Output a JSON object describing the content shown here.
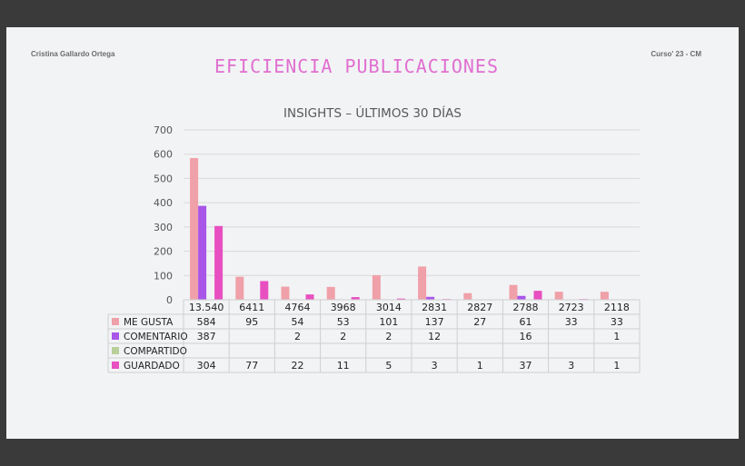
{
  "header": {
    "author": "Cristina Gallardo Ortega",
    "course": "Curso' 23 -  CM",
    "title": "EFICIENCIA PUBLICACIONES"
  },
  "chart_data": {
    "type": "bar",
    "title": "INSIGHTS – ÚLTIMOS 30 DÍAS",
    "categories": [
      "13.540",
      "6411",
      "4764",
      "3968",
      "3014",
      "2831",
      "2827",
      "2788",
      "2723",
      "2118"
    ],
    "ylim": [
      0,
      700
    ],
    "yticks": [
      0,
      100,
      200,
      300,
      400,
      500,
      600,
      700
    ],
    "grid": true,
    "legend": "table-below",
    "series": [
      {
        "name": "ME GUSTA",
        "color": "#f0a0a8",
        "values": [
          584,
          95,
          54,
          53,
          101,
          137,
          27,
          61,
          33,
          33
        ]
      },
      {
        "name": "COMENTARIO",
        "color": "#a855e8",
        "values": [
          387,
          null,
          2,
          2,
          2,
          12,
          null,
          16,
          null,
          1
        ]
      },
      {
        "name": "COMPARTIDO",
        "color": "#b9d09a",
        "values": [
          null,
          null,
          null,
          null,
          null,
          null,
          null,
          null,
          null,
          null
        ]
      },
      {
        "name": "GUARDADO",
        "color": "#e84fc0",
        "values": [
          304,
          77,
          22,
          11,
          5,
          3,
          1,
          37,
          3,
          1
        ]
      }
    ]
  }
}
